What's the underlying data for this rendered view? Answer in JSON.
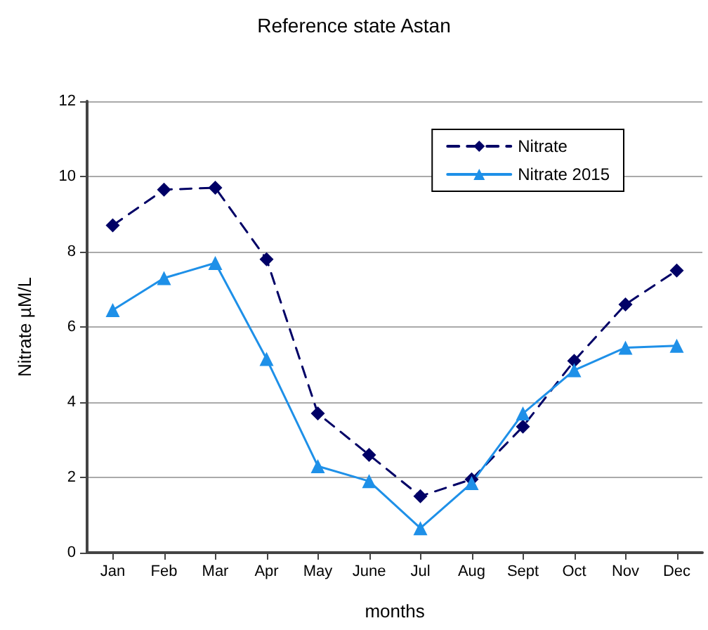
{
  "chart_data": {
    "type": "line",
    "title": "Reference state Astan",
    "xlabel": "months",
    "ylabel": "Nitrate µM/L",
    "categories": [
      "Jan",
      "Feb",
      "Mar",
      "Apr",
      "May",
      "June",
      "Jul",
      "Aug",
      "Sept",
      "Oct",
      "Nov",
      "Dec"
    ],
    "series": [
      {
        "name": "Nitrate",
        "color": "#000066",
        "marker": "diamond",
        "line_style": "dashed",
        "values": [
          8.7,
          9.65,
          9.7,
          7.8,
          3.7,
          2.6,
          1.5,
          1.95,
          3.35,
          5.1,
          6.6,
          7.5
        ]
      },
      {
        "name": "Nitrate 2015",
        "color": "#1e90e8",
        "marker": "triangle",
        "line_style": "solid",
        "values": [
          6.45,
          7.3,
          7.7,
          5.15,
          2.3,
          1.9,
          0.65,
          1.85,
          3.7,
          4.85,
          5.45,
          5.5
        ]
      }
    ],
    "ylim": [
      0,
      12
    ],
    "yticks": [
      0,
      2,
      4,
      6,
      8,
      10,
      12
    ],
    "grid": "y",
    "legend": "top right"
  }
}
